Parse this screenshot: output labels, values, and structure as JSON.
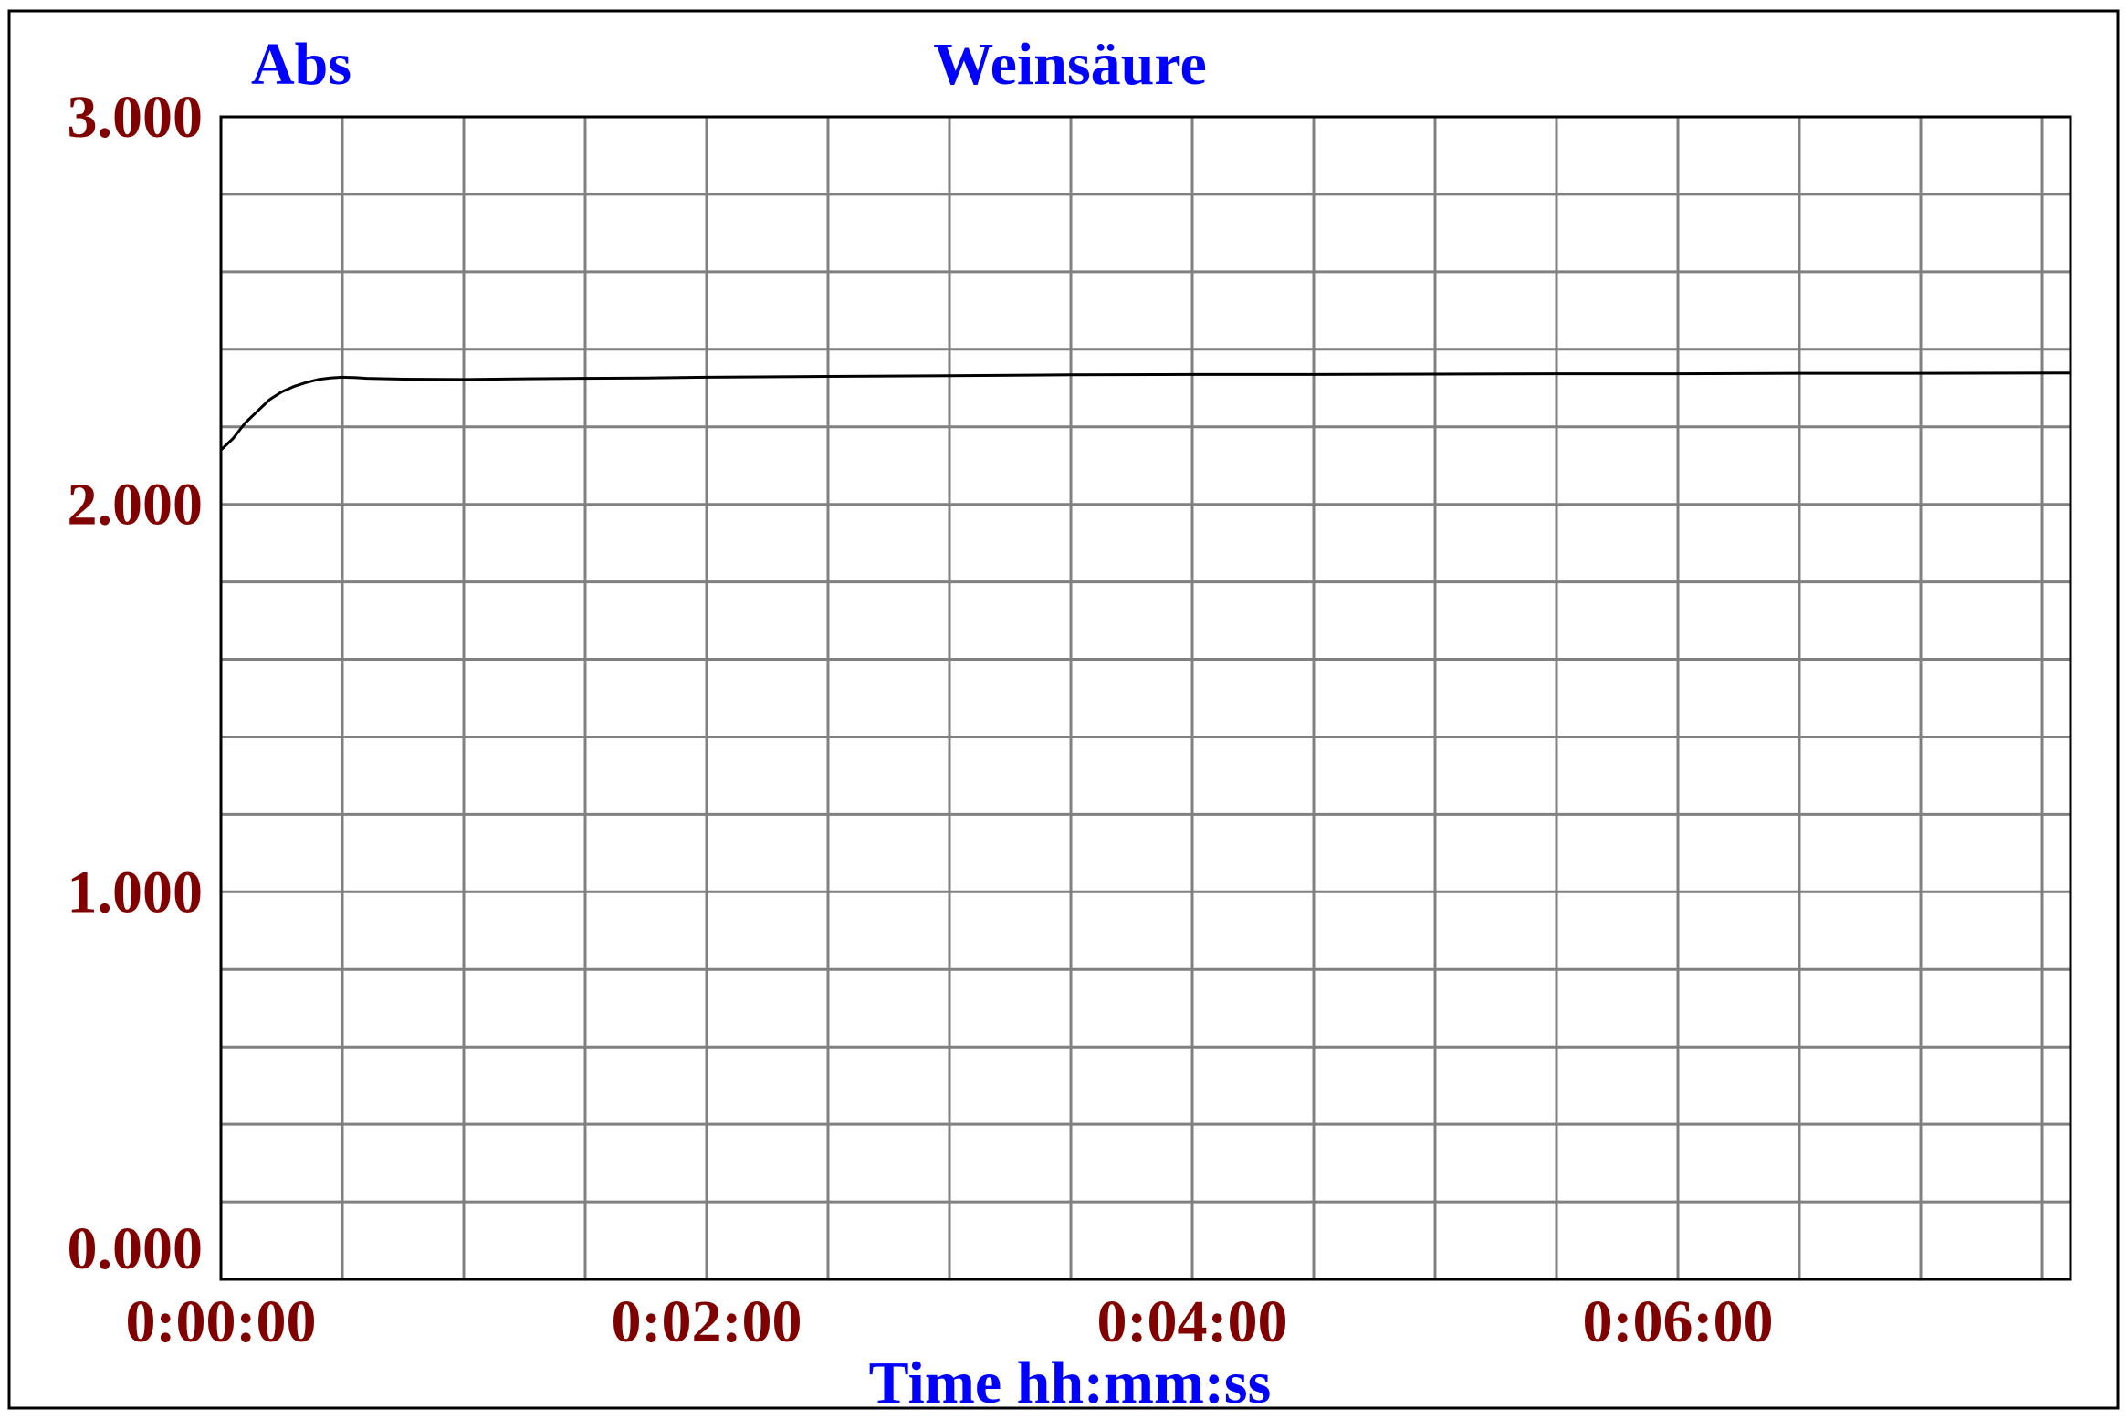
{
  "colors": {
    "axis_text": "#800000",
    "label_text": "#0000ff",
    "grid": "#808080",
    "line": "#000000",
    "frame": "#000000",
    "background": "#ffffff"
  },
  "chart_data": {
    "type": "line",
    "title": "Weinsäure",
    "ylabel": "Abs",
    "xlabel": "Time hh:mm:ss",
    "xlim": [
      0,
      457
    ],
    "ylim": [
      0,
      3
    ],
    "x_unit": "seconds",
    "x_ticks": [
      0,
      120,
      240,
      360
    ],
    "x_tick_labels": [
      "0:00:00",
      "0:02:00",
      "0:04:00",
      "0:06:00"
    ],
    "y_ticks": [
      0,
      1,
      2,
      3
    ],
    "y_tick_labels": [
      "0.000",
      "1.000",
      "2.000",
      "3.000"
    ],
    "x_grid_step": 30,
    "y_grid_step": 0.2,
    "grid": true,
    "legend": "none",
    "series": [
      {
        "x": [
          0,
          3,
          6,
          9,
          12,
          15,
          18,
          21,
          24,
          27,
          30,
          33,
          36,
          45,
          60,
          75,
          90,
          105,
          120,
          150,
          180,
          210,
          240,
          270,
          300,
          330,
          360,
          390,
          420,
          457
        ],
        "values": [
          2.14,
          2.17,
          2.21,
          2.24,
          2.27,
          2.29,
          2.304,
          2.314,
          2.322,
          2.326,
          2.328,
          2.327,
          2.325,
          2.323,
          2.322,
          2.324,
          2.325,
          2.326,
          2.328,
          2.33,
          2.332,
          2.334,
          2.335,
          2.335,
          2.336,
          2.337,
          2.337,
          2.338,
          2.338,
          2.339
        ]
      }
    ]
  }
}
